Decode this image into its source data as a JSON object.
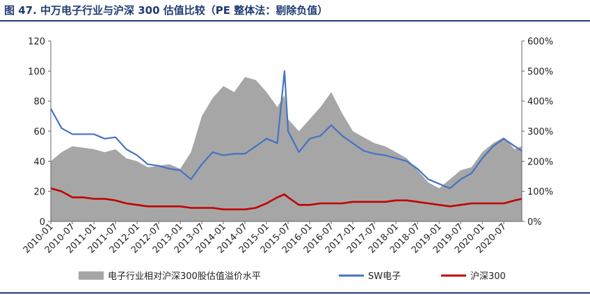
{
  "title": "图 47. 中万电子行业与沪深 300 估值比较（PE 整体法：剔除负值）",
  "colors": {
    "area": "#a6a6a6",
    "sw": "#4472c4",
    "hs300": "#c00000",
    "title": "#1f3b73"
  },
  "chart_data": {
    "type": "line",
    "title": "图 47. 中万电子行业与沪深 300 估值比较（PE 整体法：剔除负值）",
    "xlabel": "",
    "ylabel": "",
    "ylim": [
      0,
      120
    ],
    "y2lim": [
      0,
      600
    ],
    "yticks": [
      "0",
      "20",
      "40",
      "60",
      "80",
      "100",
      "120"
    ],
    "y2ticks": [
      "0%",
      "100%",
      "200%",
      "300%",
      "400%",
      "500%",
      "600%"
    ],
    "xticks": [
      "2010-01",
      "2010-07",
      "2011-01",
      "2011-07",
      "2012-01",
      "2012-07",
      "2013-01",
      "2013-07",
      "2014-01",
      "2014-07",
      "2015-01",
      "2015-07",
      "2016-01",
      "2016-07",
      "2017-01",
      "2017-07",
      "2018-01",
      "2018-07",
      "2019-01",
      "2019-07",
      "2020-01",
      "2020-07"
    ],
    "grid": false,
    "legend_position": "bottom",
    "x": [
      "2010-01",
      "2010-04",
      "2010-07",
      "2010-10",
      "2011-01",
      "2011-04",
      "2011-07",
      "2011-10",
      "2012-01",
      "2012-04",
      "2012-07",
      "2012-10",
      "2013-01",
      "2013-04",
      "2013-07",
      "2013-10",
      "2014-01",
      "2014-04",
      "2014-07",
      "2014-10",
      "2015-01",
      "2015-04",
      "2015-06",
      "2015-07",
      "2015-10",
      "2016-01",
      "2016-04",
      "2016-07",
      "2016-10",
      "2017-01",
      "2017-04",
      "2017-07",
      "2017-10",
      "2018-01",
      "2018-04",
      "2018-07",
      "2018-10",
      "2019-01",
      "2019-04",
      "2019-07",
      "2019-10",
      "2020-01",
      "2020-04",
      "2020-07",
      "2020-10",
      "2020-12"
    ],
    "series": [
      {
        "name": "电子行业相对沪深300股估值溢价水平",
        "axis": "right",
        "kind": "area",
        "values": [
          200,
          230,
          250,
          245,
          240,
          230,
          240,
          210,
          200,
          180,
          185,
          190,
          175,
          230,
          350,
          410,
          450,
          430,
          480,
          470,
          430,
          380,
          420,
          340,
          300,
          340,
          380,
          430,
          360,
          300,
          280,
          260,
          250,
          230,
          210,
          170,
          130,
          110,
          140,
          170,
          180,
          230,
          260,
          280,
          240,
          250
        ]
      },
      {
        "name": "SW电子",
        "axis": "left",
        "kind": "line",
        "values": [
          75,
          62,
          58,
          58,
          58,
          55,
          56,
          48,
          44,
          38,
          37,
          35,
          34,
          28,
          38,
          46,
          44,
          45,
          45,
          50,
          55,
          52,
          100,
          60,
          46,
          55,
          57,
          64,
          57,
          52,
          47,
          45,
          44,
          42,
          40,
          35,
          28,
          25,
          22,
          28,
          32,
          42,
          50,
          55,
          50,
          47
        ]
      },
      {
        "name": "沪深300",
        "axis": "left",
        "kind": "line",
        "values": [
          22,
          20,
          16,
          16,
          15,
          15,
          14,
          12,
          11,
          10,
          10,
          10,
          10,
          9,
          9,
          9,
          8,
          8,
          8,
          9,
          12,
          16,
          18,
          16,
          11,
          11,
          12,
          12,
          12,
          13,
          13,
          13,
          13,
          14,
          14,
          13,
          12,
          11,
          10,
          11,
          12,
          12,
          12,
          12,
          14,
          15
        ]
      }
    ]
  }
}
